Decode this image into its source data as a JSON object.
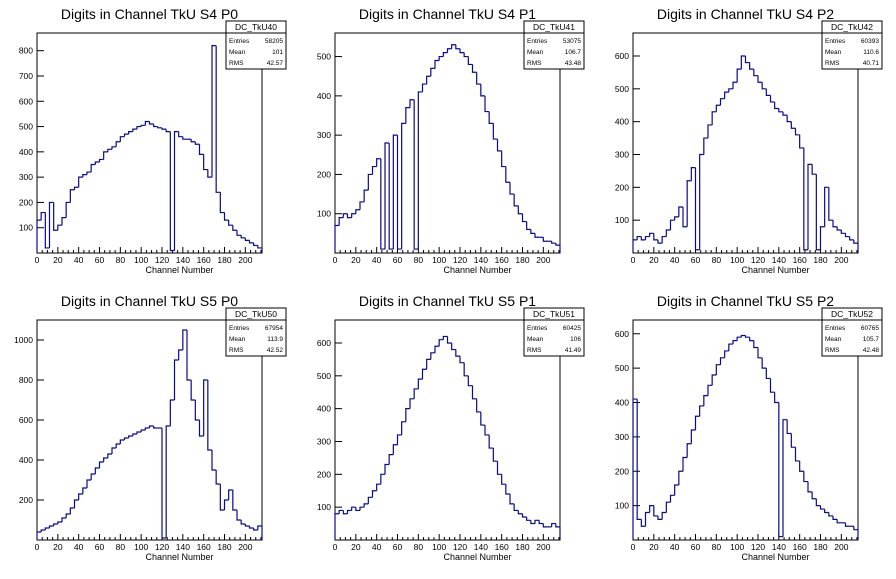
{
  "colors": {
    "line": "#0a0a8c",
    "axis": "#000000",
    "background": "#ffffff"
  },
  "chart_data": [
    {
      "type": "histogram",
      "title": "Digits in Channel TkU S4 P0",
      "xlabel": "Channel Number",
      "xlim": [
        0,
        216
      ],
      "ylim": [
        0,
        870
      ],
      "xticks": [
        0,
        20,
        40,
        60,
        80,
        100,
        120,
        140,
        160,
        180,
        200
      ],
      "yticks": [
        100,
        200,
        300,
        400,
        500,
        600,
        700,
        800
      ],
      "stats": {
        "name": "DC_TkU40",
        "entries": "58205",
        "mean": "101",
        "rms": "42.57"
      },
      "x": [
        2,
        6,
        10,
        14,
        18,
        22,
        26,
        30,
        34,
        38,
        42,
        46,
        50,
        54,
        58,
        62,
        66,
        70,
        74,
        78,
        82,
        86,
        90,
        94,
        98,
        102,
        106,
        110,
        114,
        118,
        122,
        126,
        130,
        134,
        138,
        142,
        146,
        150,
        154,
        158,
        162,
        166,
        170,
        174,
        178,
        182,
        186,
        190,
        194,
        198,
        202,
        206,
        210,
        214
      ],
      "values": [
        130,
        160,
        20,
        200,
        90,
        110,
        140,
        200,
        250,
        260,
        300,
        310,
        320,
        350,
        360,
        370,
        400,
        410,
        420,
        440,
        460,
        470,
        480,
        490,
        500,
        505,
        520,
        510,
        500,
        495,
        490,
        480,
        10,
        480,
        460,
        450,
        450,
        440,
        430,
        390,
        330,
        300,
        820,
        240,
        160,
        130,
        110,
        90,
        70,
        60,
        50,
        40,
        30,
        20
      ]
    },
    {
      "type": "histogram",
      "title": "Digits in Channel TkU S4 P1",
      "xlabel": "Channel Number",
      "xlim": [
        0,
        216
      ],
      "ylim": [
        0,
        560
      ],
      "xticks": [
        0,
        20,
        40,
        60,
        80,
        100,
        120,
        140,
        160,
        180,
        200
      ],
      "yticks": [
        100,
        200,
        300,
        400,
        500
      ],
      "stats": {
        "name": "DC_TkU41",
        "entries": "53075",
        "mean": "106.7",
        "rms": "43.48"
      },
      "x": [
        2,
        6,
        10,
        14,
        18,
        22,
        26,
        30,
        34,
        38,
        42,
        46,
        50,
        54,
        58,
        62,
        66,
        70,
        74,
        78,
        82,
        86,
        90,
        94,
        98,
        102,
        106,
        110,
        114,
        118,
        122,
        126,
        130,
        134,
        138,
        142,
        146,
        150,
        154,
        158,
        162,
        166,
        170,
        174,
        178,
        182,
        186,
        190,
        194,
        198,
        202,
        206,
        210,
        214
      ],
      "values": [
        70,
        90,
        100,
        90,
        100,
        110,
        130,
        160,
        200,
        220,
        240,
        10,
        280,
        10,
        300,
        10,
        330,
        370,
        390,
        10,
        410,
        430,
        450,
        470,
        490,
        500,
        510,
        520,
        530,
        520,
        510,
        500,
        480,
        460,
        430,
        400,
        360,
        330,
        290,
        260,
        220,
        180,
        150,
        120,
        100,
        80,
        60,
        50,
        40,
        40,
        30,
        30,
        25,
        20
      ]
    },
    {
      "type": "histogram",
      "title": "Digits in Channel TkU S4 P2",
      "xlabel": "Channel Number",
      "xlim": [
        0,
        216
      ],
      "ylim": [
        0,
        670
      ],
      "xticks": [
        0,
        20,
        40,
        60,
        80,
        100,
        120,
        140,
        160,
        180,
        200
      ],
      "yticks": [
        100,
        200,
        300,
        400,
        500,
        600
      ],
      "stats": {
        "name": "DC_TkU42",
        "entries": "60393",
        "mean": "110.6",
        "rms": "40.71"
      },
      "x": [
        2,
        6,
        10,
        14,
        18,
        22,
        26,
        30,
        34,
        38,
        42,
        46,
        50,
        54,
        58,
        62,
        66,
        70,
        74,
        78,
        82,
        86,
        90,
        94,
        98,
        102,
        106,
        110,
        114,
        118,
        122,
        126,
        130,
        134,
        138,
        142,
        146,
        150,
        154,
        158,
        162,
        166,
        170,
        174,
        178,
        182,
        186,
        190,
        194,
        198,
        202,
        206,
        210,
        214
      ],
      "values": [
        40,
        50,
        40,
        50,
        60,
        40,
        30,
        50,
        70,
        100,
        110,
        140,
        80,
        220,
        260,
        10,
        300,
        350,
        390,
        430,
        450,
        470,
        490,
        500,
        520,
        560,
        600,
        580,
        560,
        540,
        520,
        500,
        480,
        460,
        440,
        430,
        420,
        400,
        380,
        360,
        320,
        10,
        270,
        240,
        10,
        80,
        200,
        100,
        80,
        70,
        60,
        50,
        40,
        30
      ]
    },
    {
      "type": "histogram",
      "title": "Digits in Channel TkU S5 P0",
      "xlabel": "Channel Number",
      "xlim": [
        0,
        216
      ],
      "ylim": [
        0,
        1100
      ],
      "xticks": [
        0,
        20,
        40,
        60,
        80,
        100,
        120,
        140,
        160,
        180,
        200
      ],
      "yticks": [
        200,
        400,
        600,
        800,
        1000
      ],
      "stats": {
        "name": "DC_TkU50",
        "entries": "67954",
        "mean": "113.9",
        "rms": "42.52"
      },
      "x": [
        2,
        6,
        10,
        14,
        18,
        22,
        26,
        30,
        34,
        38,
        42,
        46,
        50,
        54,
        58,
        62,
        66,
        70,
        74,
        78,
        82,
        86,
        90,
        94,
        98,
        102,
        106,
        110,
        114,
        118,
        122,
        126,
        130,
        134,
        138,
        142,
        146,
        150,
        154,
        158,
        162,
        166,
        170,
        174,
        178,
        182,
        186,
        190,
        194,
        198,
        202,
        206,
        210,
        214
      ],
      "values": [
        40,
        50,
        60,
        70,
        80,
        90,
        110,
        130,
        160,
        200,
        230,
        260,
        300,
        330,
        360,
        390,
        410,
        430,
        460,
        480,
        500,
        510,
        520,
        530,
        540,
        550,
        560,
        570,
        560,
        560,
        10,
        570,
        700,
        900,
        950,
        1050,
        800,
        700,
        600,
        520,
        800,
        450,
        350,
        280,
        150,
        200,
        250,
        150,
        100,
        80,
        70,
        60,
        50,
        70
      ]
    },
    {
      "type": "histogram",
      "title": "Digits in Channel TkU S5 P1",
      "xlabel": "Channel Number",
      "xlim": [
        0,
        216
      ],
      "ylim": [
        0,
        670
      ],
      "xticks": [
        0,
        20,
        40,
        60,
        80,
        100,
        120,
        140,
        160,
        180,
        200
      ],
      "yticks": [
        100,
        200,
        300,
        400,
        500,
        600
      ],
      "stats": {
        "name": "DC_TkU51",
        "entries": "60425",
        "mean": "106",
        "rms": "41.49"
      },
      "x": [
        2,
        6,
        10,
        14,
        18,
        22,
        26,
        30,
        34,
        38,
        42,
        46,
        50,
        54,
        58,
        62,
        66,
        70,
        74,
        78,
        82,
        86,
        90,
        94,
        98,
        102,
        106,
        110,
        114,
        118,
        122,
        126,
        130,
        134,
        138,
        142,
        146,
        150,
        154,
        158,
        162,
        166,
        170,
        174,
        178,
        182,
        186,
        190,
        194,
        198,
        202,
        206,
        210,
        214
      ],
      "values": [
        80,
        90,
        80,
        90,
        100,
        90,
        100,
        110,
        130,
        150,
        170,
        200,
        230,
        260,
        290,
        320,
        360,
        400,
        430,
        460,
        490,
        520,
        550,
        570,
        590,
        610,
        620,
        600,
        580,
        560,
        540,
        500,
        470,
        430,
        390,
        350,
        320,
        280,
        240,
        200,
        170,
        140,
        110,
        90,
        80,
        70,
        60,
        50,
        60,
        50,
        40,
        40,
        50,
        40
      ]
    },
    {
      "type": "histogram",
      "title": "Digits in Channel TkU S5 P2",
      "xlabel": "Channel Number",
      "xlim": [
        0,
        216
      ],
      "ylim": [
        0,
        640
      ],
      "xticks": [
        0,
        20,
        40,
        60,
        80,
        100,
        120,
        140,
        160,
        180,
        200
      ],
      "yticks": [
        100,
        200,
        300,
        400,
        500,
        600
      ],
      "stats": {
        "name": "DC_TkU52",
        "entries": "60765",
        "mean": "105.7",
        "rms": "42.48"
      },
      "x": [
        2,
        6,
        10,
        14,
        18,
        22,
        26,
        30,
        34,
        38,
        42,
        46,
        50,
        54,
        58,
        62,
        66,
        70,
        74,
        78,
        82,
        86,
        90,
        94,
        98,
        102,
        106,
        110,
        114,
        118,
        122,
        126,
        130,
        134,
        138,
        142,
        146,
        150,
        154,
        158,
        162,
        166,
        170,
        174,
        178,
        182,
        186,
        190,
        194,
        198,
        202,
        206,
        210,
        214
      ],
      "values": [
        410,
        60,
        40,
        80,
        100,
        70,
        60,
        80,
        110,
        130,
        160,
        200,
        240,
        280,
        320,
        360,
        390,
        420,
        450,
        480,
        510,
        530,
        550,
        570,
        580,
        590,
        595,
        590,
        580,
        560,
        530,
        500,
        470,
        430,
        400,
        10,
        350,
        310,
        270,
        230,
        200,
        170,
        140,
        120,
        100,
        90,
        80,
        70,
        60,
        50,
        50,
        40,
        40,
        30
      ]
    }
  ]
}
